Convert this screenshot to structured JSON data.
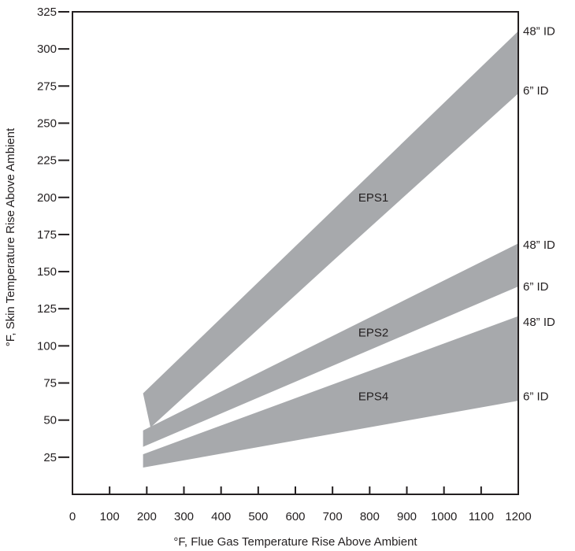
{
  "chart_data": {
    "type": "area",
    "xlabel": "°F, Flue Gas Temperature Rise Above Ambient",
    "ylabel": "°F, Skin Temperature Rise Above Ambient",
    "xlim": [
      0,
      1200
    ],
    "ylim": [
      0,
      325
    ],
    "x_ticks": [
      0,
      100,
      200,
      300,
      400,
      500,
      600,
      700,
      800,
      900,
      1000,
      1100,
      1200
    ],
    "y_ticks": [
      25,
      50,
      75,
      100,
      125,
      150,
      175,
      200,
      225,
      250,
      275,
      300,
      325
    ],
    "band_color": "#a7a9ac",
    "grid": false,
    "bands": [
      {
        "name": "EPS1",
        "upper": [
          [
            190,
            68
          ],
          [
            1200,
            312
          ]
        ],
        "lower": [
          [
            210,
            45
          ],
          [
            700,
            157
          ],
          [
            1200,
            270
          ]
        ],
        "label_at": [
          810,
          200
        ]
      },
      {
        "name": "EPS2",
        "upper": [
          [
            190,
            43
          ],
          [
            1200,
            169
          ]
        ],
        "lower": [
          [
            190,
            32
          ],
          [
            1200,
            140
          ]
        ],
        "label_at": [
          810,
          109
        ]
      },
      {
        "name": "EPS4",
        "upper": [
          [
            190,
            27
          ],
          [
            1200,
            120
          ]
        ],
        "lower": [
          [
            190,
            18
          ],
          [
            1200,
            63
          ]
        ],
        "label_at": [
          810,
          66
        ]
      }
    ],
    "right_labels": [
      {
        "text": "48” ID",
        "y": 312
      },
      {
        "text": "6” ID",
        "y": 272
      },
      {
        "text": "48” ID",
        "y": 168
      },
      {
        "text": "6” ID",
        "y": 140
      },
      {
        "text": "48” ID",
        "y": 116
      },
      {
        "text": "6” ID",
        "y": 66
      }
    ]
  }
}
